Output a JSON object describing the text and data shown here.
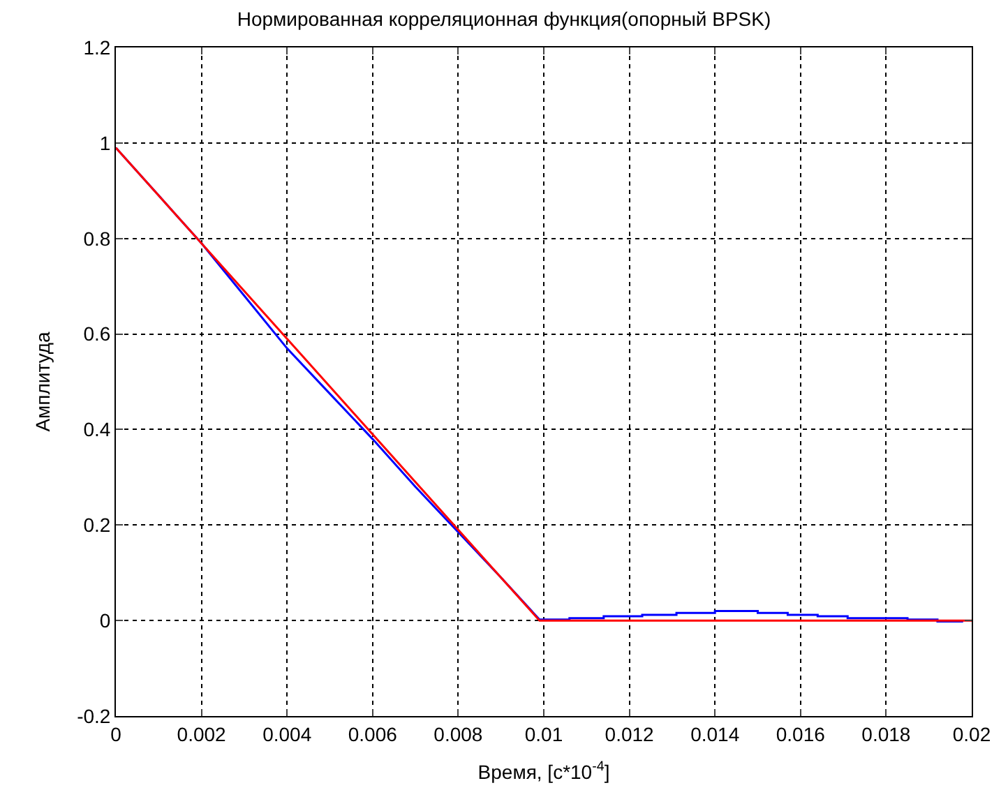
{
  "chart_data": {
    "type": "line",
    "title": "Нормированная корреляционная функция(опорный BPSK)",
    "xlabel": "Время, [c*10$^{-4}$]",
    "ylabel": "Амплитуда",
    "xlim": [
      0,
      0.02
    ],
    "xticks": [
      0,
      0.002,
      0.004,
      0.006,
      0.008,
      0.01,
      0.012,
      0.014,
      0.016,
      0.018,
      0.02
    ],
    "ylim": [
      -0.2,
      1.2
    ],
    "yticks": [
      -0.2,
      0,
      0.2,
      0.4,
      0.6,
      0.8,
      1,
      1.2
    ],
    "grid": true,
    "marker": "none",
    "line_style": "solid",
    "series": [
      {
        "color": "#0000ff",
        "x": [
          0,
          0.001,
          0.002,
          0.003,
          0.004,
          0.005,
          0.006,
          0.007,
          0.008,
          0.009,
          0.0099,
          0.0106,
          0.0106,
          0.0114,
          0.0114,
          0.0123,
          0.0123,
          0.0131,
          0.0131,
          0.014,
          0.014,
          0.015,
          0.015,
          0.0157,
          0.0157,
          0.0164,
          0.0164,
          0.0171,
          0.0171,
          0.0185,
          0.0185,
          0.0192,
          0.0192,
          0.0198
        ],
        "values": [
          0.99,
          0.89,
          0.79,
          0.68,
          0.57,
          0.475,
          0.38,
          0.28,
          0.185,
          0.09,
          0.002,
          0.002,
          0.005,
          0.005,
          0.009,
          0.009,
          0.012,
          0.012,
          0.016,
          0.016,
          0.02,
          0.02,
          0.016,
          0.016,
          0.012,
          0.012,
          0.009,
          0.009,
          0.005,
          0.005,
          0.002,
          0.002,
          -0.002,
          -0.002
        ]
      },
      {
        "color": "#ff0000",
        "x": [
          0,
          0.0099,
          0.02
        ],
        "values": [
          0.99,
          0,
          0
        ]
      }
    ]
  }
}
